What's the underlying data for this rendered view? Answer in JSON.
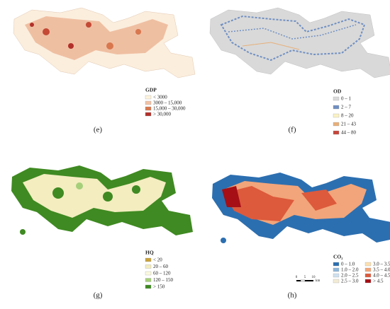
{
  "panels": [
    {
      "label": "(e)",
      "legend": {
        "title": "GDP",
        "items": [
          {
            "label": "< 3000",
            "color": "#fdf3dc"
          },
          {
            "label": "3000 – 15,000",
            "color": "#f2c3a6"
          },
          {
            "label": "15,000 – 30,000",
            "color": "#d9774e"
          },
          {
            "label": "> 30,000",
            "color": "#b2302a"
          }
        ]
      }
    },
    {
      "label": "(f)",
      "legend": {
        "title": "OD",
        "items": [
          {
            "label": "0 – 1",
            "color": "#d9d9d9"
          },
          {
            "label": "2 – 7",
            "color": "#6f8fc2"
          },
          {
            "label": "8 – 20",
            "color": "#fbf3c5"
          },
          {
            "label": "21 – 43",
            "color": "#e7b07a"
          },
          {
            "label": "44 – 80",
            "color": "#c5453a"
          }
        ]
      }
    },
    {
      "label": "(g)",
      "legend": {
        "title": "HQ",
        "items": [
          {
            "label": "< 20",
            "color": "#c9a23a"
          },
          {
            "label": "20 – 60",
            "color": "#f3edc0"
          },
          {
            "label": "60 – 120",
            "color": "#fbf9de"
          },
          {
            "label": "120 – 150",
            "color": "#a6cf7a"
          },
          {
            "label": "> 150",
            "color": "#3f8a22"
          }
        ]
      }
    },
    {
      "label": "(h)",
      "legend": {
        "title": "CO₂",
        "items": [
          {
            "label": "0 – 1.0",
            "color": "#2c6fb0"
          },
          {
            "label": "1.0 – 2.0",
            "color": "#8fb6d9"
          },
          {
            "label": "2.0 – 2.5",
            "color": "#cfe0ee"
          },
          {
            "label": "2.5 – 3.0",
            "color": "#f3ecd6"
          },
          {
            "label": "3.0 – 3.5",
            "color": "#fbe0b0"
          },
          {
            "label": "3.5 – 4.0",
            "color": "#f2a57a"
          },
          {
            "label": "4.0 – 4.5",
            "color": "#dd5a3c"
          },
          {
            "label": "> 4.5",
            "color": "#a50f15"
          }
        ]
      }
    }
  ],
  "scale_bar": {
    "ticks": [
      "0",
      "5",
      "10"
    ],
    "unit": "km"
  }
}
